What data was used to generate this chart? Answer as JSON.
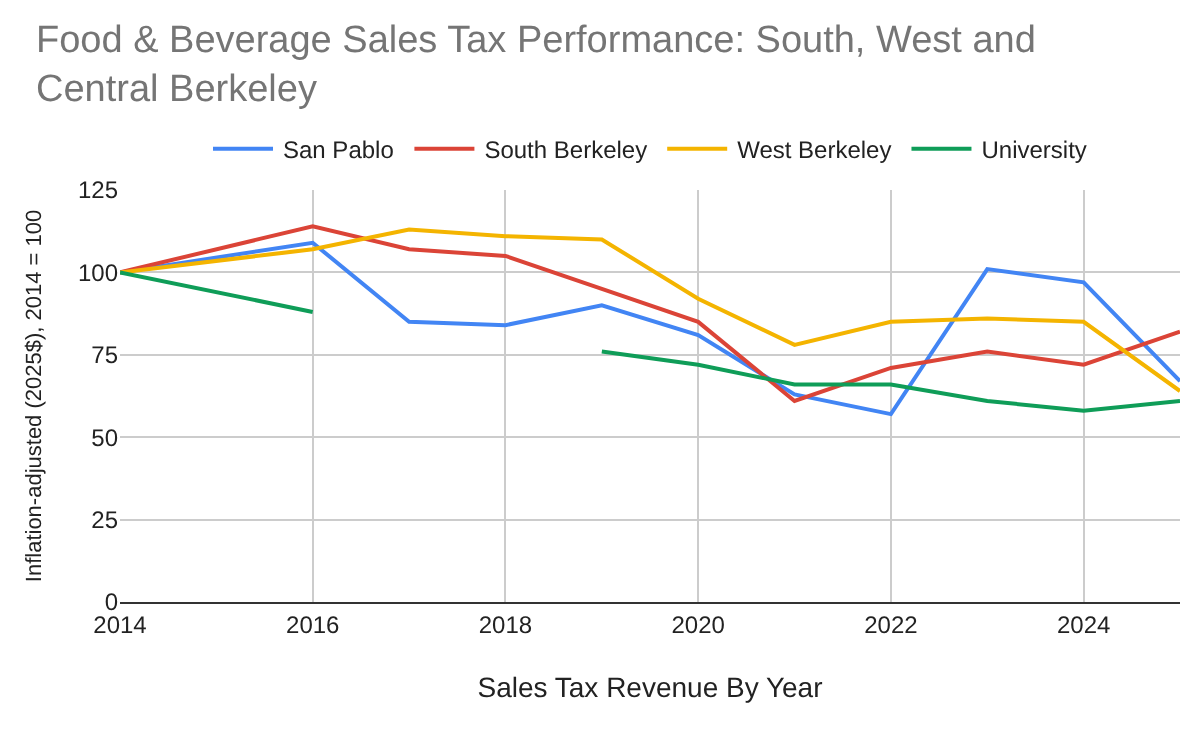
{
  "chart_data": {
    "type": "line",
    "title": "Food & Beverage Sales Tax Performance: South, West and Central Berkeley",
    "xlabel": "Sales Tax Revenue By Year",
    "ylabel": "Inflation-adjusted (2025$), 2014 = 100",
    "x": [
      2014,
      2016,
      2017,
      2018,
      2019,
      2020,
      2021,
      2022,
      2023,
      2024,
      2025
    ],
    "series": [
      {
        "name": "San Pablo",
        "color": "#4285f4",
        "values": [
          100,
          109,
          85,
          84,
          90,
          81,
          63,
          57,
          101,
          97,
          67
        ]
      },
      {
        "name": "South Berkeley",
        "color": "#db4437",
        "values": [
          100,
          114,
          107,
          105,
          95,
          85,
          61,
          71,
          76,
          72,
          82
        ]
      },
      {
        "name": "West Berkeley",
        "color": "#f4b400",
        "values": [
          100,
          107,
          113,
          111,
          110,
          92,
          78,
          85,
          86,
          85,
          64
        ]
      },
      {
        "name": "University",
        "color": "#0f9d58",
        "values": [
          100,
          88,
          null,
          null,
          76,
          72,
          66,
          66,
          61,
          58,
          61
        ]
      }
    ],
    "xlim": [
      2014,
      2025
    ],
    "xticks": [
      2014,
      2016,
      2018,
      2020,
      2022,
      2024
    ],
    "ylim": [
      0,
      125
    ],
    "yticks": [
      0,
      25,
      50,
      75,
      100,
      125
    ],
    "grid": true,
    "legend": "top",
    "marker": "none",
    "line_style": "solid"
  }
}
